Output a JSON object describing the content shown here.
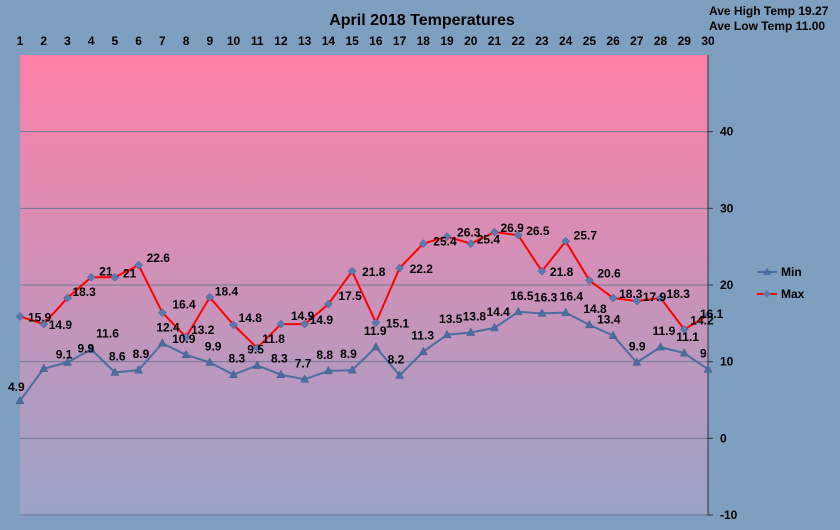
{
  "stats": {
    "ave_high": "Ave High Temp 19.27",
    "ave_low": "Ave Low Temp 11.00"
  },
  "chart_data": {
    "type": "line",
    "title": "April 2018  Temperatures",
    "xlabel": "",
    "ylabel": "",
    "x": [
      1,
      2,
      3,
      4,
      5,
      6,
      7,
      8,
      9,
      10,
      11,
      12,
      13,
      14,
      15,
      16,
      17,
      18,
      19,
      20,
      21,
      22,
      23,
      24,
      25,
      26,
      27,
      28,
      29,
      30
    ],
    "ylim": [
      -10,
      50
    ],
    "yticks": [
      -10,
      0,
      10,
      20,
      30,
      40
    ],
    "x_axis_position": "top",
    "y_axis_position": "right",
    "grid": true,
    "legend": "right",
    "series": [
      {
        "name": "Min",
        "color": "#4a6ea0",
        "marker": "triangle",
        "values": [
          4.9,
          9.1,
          9.9,
          11.6,
          8.6,
          8.9,
          12.4,
          10.9,
          9.9,
          8.3,
          9.5,
          8.3,
          7.7,
          8.8,
          8.9,
          11.9,
          8.2,
          11.3,
          13.5,
          13.8,
          14.4,
          16.5,
          16.3,
          16.4,
          14.8,
          13.4,
          9.9,
          11.9,
          11.1,
          9
        ]
      },
      {
        "name": "Max",
        "color": "#ff0000",
        "marker": "diamond",
        "values": [
          15.9,
          14.9,
          18.3,
          21,
          21,
          22.6,
          16.4,
          13.2,
          18.4,
          14.8,
          11.8,
          14.9,
          14.9,
          17.5,
          21.8,
          15.1,
          22.2,
          25.4,
          26.3,
          25.4,
          26.9,
          26.5,
          21.8,
          25.7,
          20.6,
          18.3,
          17.9,
          18.3,
          14.2,
          16.1
        ]
      }
    ],
    "colors": {
      "background": "#7f9fc0",
      "plot_top": "#ff80a8",
      "plot_bottom": "#9aa3c8",
      "grid": "#6e7890"
    }
  }
}
